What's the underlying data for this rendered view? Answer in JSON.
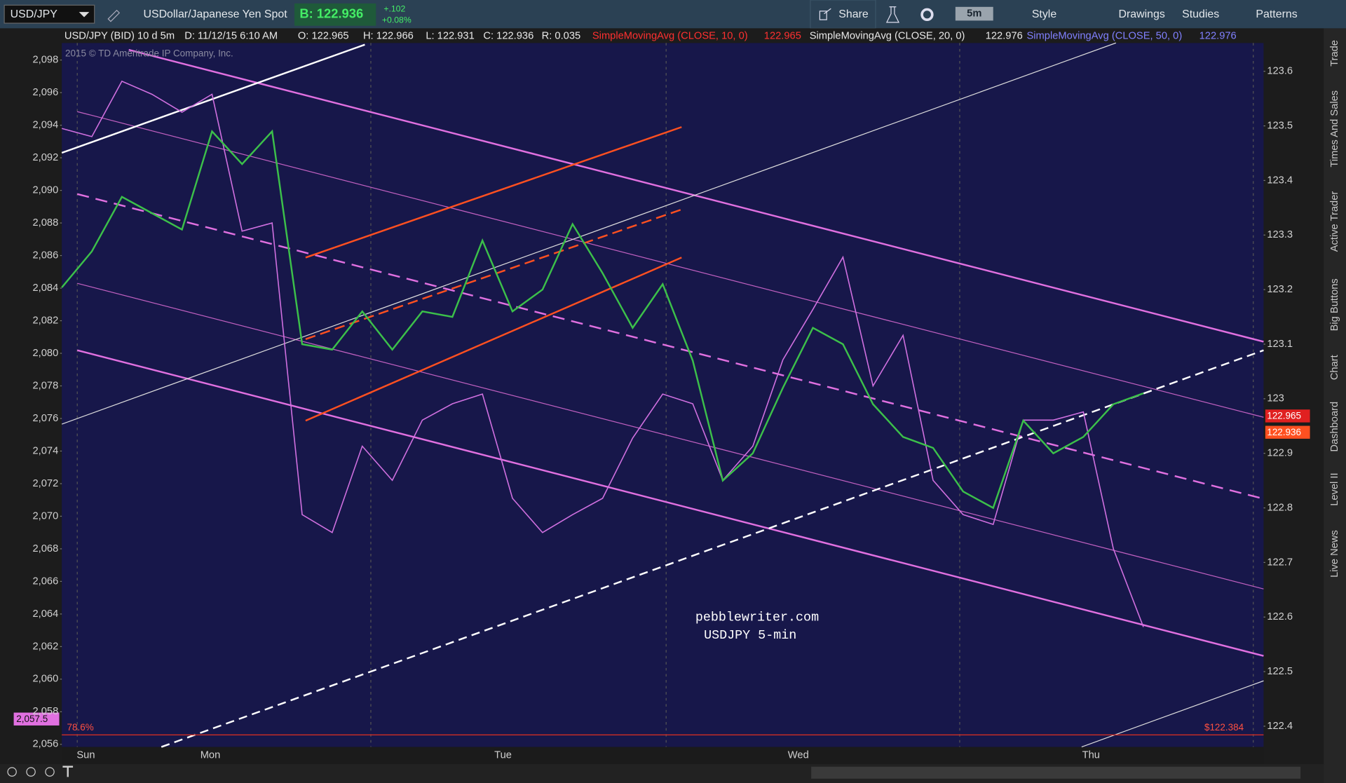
{
  "toolbar": {
    "symbol": "USD/JPY",
    "description": "USDollar/Japanese Yen Spot",
    "bid": "B: 122.936",
    "change": "+.102",
    "change_pct": "+0.08%",
    "share": "Share",
    "interval": "5m",
    "style": "Style",
    "drawings": "Drawings",
    "studies": "Studies",
    "patterns": "Patterns"
  },
  "info_bar": {
    "symbol": "USD/JPY (BID) 10 d 5m",
    "date": "D: 11/12/15 6:10 AM",
    "open": "O: 122.965",
    "high": "H: 122.966",
    "low": "L: 122.931",
    "close": "C: 122.936",
    "range": "R: 0.035",
    "studies": [
      {
        "label": "SimpleMovingAvg (CLOSE, 10, 0)",
        "value": "122.965"
      },
      {
        "label": "SimpleMovingAvg (CLOSE, 20, 0)",
        "value": "122.976"
      },
      {
        "label": "SimpleMovingAvg (CLOSE, 50, 0)",
        "value": "122.976"
      }
    ]
  },
  "chart": {
    "watermark": "2015 © TD Ameritrade IP Company, Inc.",
    "annotations": [
      "pebblewriter.com",
      "USDJPY 5-min"
    ],
    "fib_label": "78.6%",
    "low_label": "$122.384",
    "left_marker": "2,057.5",
    "price_tags": [
      "122.965",
      "122.936"
    ],
    "days": [
      "Sun",
      "Mon",
      "Tue",
      "Wed",
      "Thu"
    ],
    "left_axis": {
      "ylim": [
        2055.84,
        2099.05
      ],
      "yticks": [
        {
          "value": 2098,
          "label": "2,098"
        },
        {
          "value": 2096,
          "label": "2,096"
        },
        {
          "value": 2094,
          "label": "2,094"
        },
        {
          "value": 2092,
          "label": "2,092"
        },
        {
          "value": 2090,
          "label": "2,090"
        },
        {
          "value": 2088,
          "label": "2,088"
        },
        {
          "value": 2086,
          "label": "2,086"
        },
        {
          "value": 2084,
          "label": "2,084"
        },
        {
          "value": 2082,
          "label": "2,082"
        },
        {
          "value": 2080,
          "label": "2,080"
        },
        {
          "value": 2078,
          "label": "2,078"
        },
        {
          "value": 2076,
          "label": "2,076"
        },
        {
          "value": 2074,
          "label": "2,074"
        },
        {
          "value": 2072,
          "label": "2,072"
        },
        {
          "value": 2070,
          "label": "2,070"
        },
        {
          "value": 2068,
          "label": "2,068"
        },
        {
          "value": 2066,
          "label": "2,066"
        },
        {
          "value": 2064,
          "label": "2,064"
        },
        {
          "value": 2062,
          "label": "2,062"
        },
        {
          "value": 2060,
          "label": "2,060"
        },
        {
          "value": 2058,
          "label": "2,058"
        },
        {
          "value": 2056,
          "label": "2,056"
        }
      ]
    },
    "right_axis": {
      "ylim": [
        122.362,
        123.652
      ],
      "yticks": [
        123.6,
        123.5,
        123.4,
        123.3,
        123.2,
        123.1,
        123,
        122.9,
        122.8,
        122.7,
        122.6,
        122.5,
        122.4
      ]
    },
    "series": [
      {
        "color": "#3cc04a",
        "axis": "right",
        "values": [
          123.204,
          123.27,
          123.37,
          123.34,
          123.31,
          123.49,
          123.43,
          123.49,
          123.1,
          123.09,
          123.16,
          123.09,
          123.16,
          123.15,
          123.29,
          123.16,
          123.2,
          123.32,
          123.23,
          123.13,
          123.21,
          123.07,
          122.85,
          122.9,
          123.02,
          123.13,
          123.1,
          122.99,
          122.93,
          122.91,
          122.83,
          122.8,
          122.96,
          122.9,
          122.93,
          122.99,
          123.01
        ]
      },
      {
        "color": "#d070e0",
        "axis": "left",
        "values": [
          2093.8,
          2093.3,
          2096.7,
          2095.9,
          2094.8,
          2095.9,
          2087.5,
          2088,
          2070.1,
          2069,
          2074.3,
          2072.2,
          2075.9,
          2076.9,
          2077.5,
          2071.1,
          2069,
          2070.1,
          2071.1,
          2074.8,
          2077.5,
          2076.9,
          2072.2,
          2074.3,
          2079.6,
          2082.7,
          2085.9,
          2078,
          2081.1,
          2072.2,
          2070.1,
          2069.5,
          2075.9,
          2075.9,
          2076.4,
          2068,
          2063.2
        ]
      }
    ]
  },
  "sidebar": [
    "Trade",
    "Times And Sales",
    "Active Trader",
    "Big Buttons",
    "Chart",
    "Dashboard",
    "Level II",
    "Live News"
  ]
}
